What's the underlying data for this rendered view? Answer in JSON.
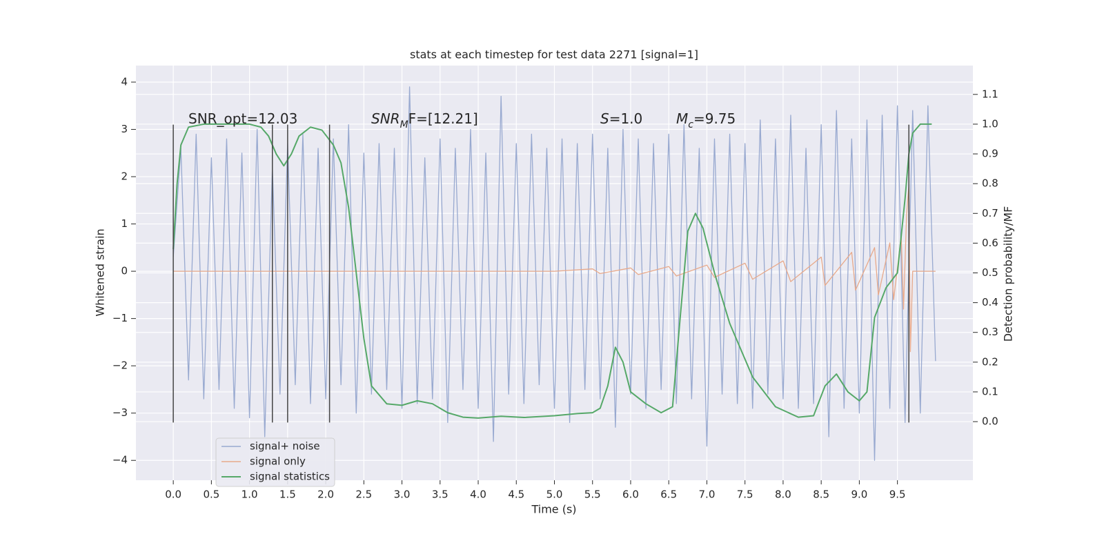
{
  "chart_data": {
    "type": "line",
    "title": "stats at each timestep for test data 2271 [signal=1]",
    "xlabel": "Time (s)",
    "ylabel": "Whitened strain",
    "y2label": "Detection probability/MF",
    "xlim": [
      -0.49,
      10.49
    ],
    "ylim": [
      -4.42,
      4.35
    ],
    "y2lim": [
      -0.197,
      1.197
    ],
    "xticks": [
      {
        "value": 0,
        "label": "0.0"
      },
      0.5,
      {
        "value": 1,
        "label": "1.0"
      },
      1.5,
      {
        "value": 2,
        "label": "2.0"
      },
      2.5,
      {
        "value": 3,
        "label": "3.0"
      },
      3.5,
      {
        "value": 4,
        "label": "4.0"
      },
      4.5,
      {
        "value": 5,
        "label": "5.0"
      },
      5.5,
      {
        "value": 6,
        "label": "6.0"
      },
      6.5,
      {
        "value": 7,
        "label": "7.0"
      },
      7.5,
      {
        "value": 8,
        "label": "8.0"
      },
      8.5,
      {
        "value": 9,
        "label": "9.0"
      },
      9.5
    ],
    "yticks": [
      {
        "value": -4,
        "label": "−4"
      },
      {
        "value": -3,
        "label": "−3"
      },
      {
        "value": -2,
        "label": "−2"
      },
      {
        "value": -1,
        "label": "−1"
      },
      0,
      1,
      2,
      3,
      4
    ],
    "y2ticks": [
      {
        "value": 0,
        "label": "0.0"
      },
      0.1,
      0.2,
      0.3,
      0.4,
      0.5,
      0.6,
      0.7,
      0.8,
      0.9,
      {
        "value": 1,
        "label": "1.0"
      },
      1.1
    ],
    "grid": true,
    "legend": "lower left",
    "annotations": [
      [
        "SNR_opt=12.03"
      ],
      [
        "SNR",
        "M",
        "F=[12.21]"
      ],
      [
        "S",
        "=1.0"
      ],
      [
        "M",
        "c",
        "=9.75"
      ]
    ],
    "vlines": [
      0,
      1.3,
      1.5,
      2.05,
      9.65
    ],
    "vline_range": [
      -3.2,
      3.1
    ],
    "series": [
      {
        "name": "signal+ noise",
        "color": "#98a9d0",
        "x": [
          0,
          0.1,
          0.2,
          0.3,
          0.4,
          0.5,
          0.6,
          0.7,
          0.8,
          0.9,
          1,
          1.1,
          1.2,
          1.3,
          1.4,
          1.5,
          1.6,
          1.7,
          1.8,
          1.9,
          2,
          2.1,
          2.2,
          2.3,
          2.4,
          2.5,
          2.6,
          2.7,
          2.8,
          2.9,
          3,
          3.1,
          3.2,
          3.3,
          3.4,
          3.5,
          3.6,
          3.7,
          3.8,
          3.9,
          4,
          4.1,
          4.2,
          4.3,
          4.4,
          4.5,
          4.6,
          4.7,
          4.8,
          4.9,
          5,
          5.1,
          5.2,
          5.3,
          5.4,
          5.5,
          5.6,
          5.7,
          5.8,
          5.9,
          6,
          6.1,
          6.2,
          6.3,
          6.4,
          6.5,
          6.6,
          6.7,
          6.8,
          6.9,
          7,
          7.1,
          7.2,
          7.3,
          7.4,
          7.5,
          7.6,
          7.7,
          7.8,
          7.9,
          8,
          8.1,
          8.2,
          8.3,
          8.4,
          8.5,
          8.6,
          8.7,
          8.8,
          8.9,
          9,
          9.1,
          9.2,
          9.3,
          9.4,
          9.5,
          9.6,
          9.7,
          9.8,
          9.9,
          10
        ],
        "values": [
          0.3,
          2.6,
          -2.3,
          2.9,
          -2.7,
          2.4,
          -2.5,
          2.8,
          -2.9,
          2.5,
          -3.1,
          3.0,
          -3.5,
          2.2,
          -2.6,
          2.7,
          -2.4,
          2.9,
          -2.8,
          2.6,
          -2.7,
          2.8,
          -2.4,
          3.1,
          -3.0,
          2.5,
          -2.6,
          2.7,
          -2.5,
          2.6,
          -2.9,
          3.9,
          -2.8,
          2.4,
          -2.7,
          2.8,
          -3.2,
          2.6,
          -2.5,
          3.0,
          -2.9,
          2.5,
          -3.6,
          3.7,
          -2.6,
          2.7,
          -2.8,
          2.9,
          -2.4,
          2.6,
          -2.9,
          2.8,
          -3.2,
          2.7,
          -2.5,
          2.9,
          -2.7,
          2.6,
          -3.3,
          3.0,
          -2.6,
          2.8,
          -2.9,
          2.7,
          -2.5,
          2.9,
          -2.8,
          3.1,
          -2.7,
          2.6,
          -3.7,
          2.8,
          -2.6,
          2.9,
          -2.8,
          2.7,
          -2.9,
          3.2,
          -2.6,
          2.8,
          -2.7,
          3.3,
          -2.9,
          2.6,
          -2.8,
          3.1,
          -3.5,
          3.4,
          -2.9,
          2.8,
          -3.0,
          3.2,
          -4.0,
          3.3,
          -2.9,
          3.5,
          -3.2,
          3.4,
          -3.0,
          3.5,
          -1.9
        ]
      },
      {
        "name": "signal only",
        "color": "#e8a98a",
        "x": [
          0,
          5.0,
          5.5,
          5.6,
          6.0,
          6.1,
          6.5,
          6.6,
          7.0,
          7.1,
          7.5,
          7.6,
          8.0,
          8.1,
          8.5,
          8.55,
          8.9,
          8.95,
          9.2,
          9.25,
          9.4,
          9.45,
          9.55,
          9.58,
          9.62,
          9.65,
          9.67,
          9.7,
          10.0
        ],
        "values": [
          0,
          0,
          0.05,
          -0.05,
          0.07,
          -0.07,
          0.1,
          -0.1,
          0.13,
          -0.13,
          0.17,
          -0.17,
          0.22,
          -0.22,
          0.3,
          -0.3,
          0.4,
          -0.4,
          0.5,
          -0.5,
          0.6,
          -0.6,
          0.75,
          -0.8,
          1.2,
          1.8,
          -1.7,
          0,
          0
        ]
      },
      {
        "name": "signal statistics",
        "color": "#55a868",
        "axis": "y2",
        "x": [
          0,
          0.05,
          0.1,
          0.2,
          0.4,
          0.6,
          0.8,
          1.0,
          1.15,
          1.25,
          1.35,
          1.45,
          1.55,
          1.65,
          1.8,
          1.95,
          2.1,
          2.2,
          2.3,
          2.4,
          2.5,
          2.6,
          2.8,
          3.0,
          3.2,
          3.4,
          3.6,
          3.8,
          4.0,
          4.3,
          4.6,
          5.0,
          5.3,
          5.5,
          5.6,
          5.7,
          5.8,
          5.9,
          6.0,
          6.2,
          6.4,
          6.55,
          6.65,
          6.75,
          6.85,
          6.95,
          7.1,
          7.3,
          7.6,
          7.9,
          8.2,
          8.4,
          8.55,
          8.7,
          8.85,
          9.0,
          9.1,
          9.2,
          9.35,
          9.5,
          9.6,
          9.65,
          9.7,
          9.8,
          9.95
        ],
        "values": [
          0.58,
          0.8,
          0.93,
          0.99,
          1.0,
          1.0,
          1.0,
          1.0,
          0.99,
          0.96,
          0.9,
          0.86,
          0.9,
          0.96,
          0.99,
          0.98,
          0.93,
          0.87,
          0.72,
          0.5,
          0.28,
          0.12,
          0.06,
          0.055,
          0.07,
          0.06,
          0.03,
          0.015,
          0.012,
          0.018,
          0.014,
          0.02,
          0.027,
          0.03,
          0.045,
          0.12,
          0.25,
          0.2,
          0.1,
          0.06,
          0.03,
          0.05,
          0.35,
          0.64,
          0.7,
          0.65,
          0.5,
          0.33,
          0.15,
          0.05,
          0.015,
          0.02,
          0.12,
          0.16,
          0.1,
          0.07,
          0.1,
          0.35,
          0.45,
          0.5,
          0.75,
          0.9,
          0.97,
          1.0,
          1.0
        ]
      }
    ]
  }
}
